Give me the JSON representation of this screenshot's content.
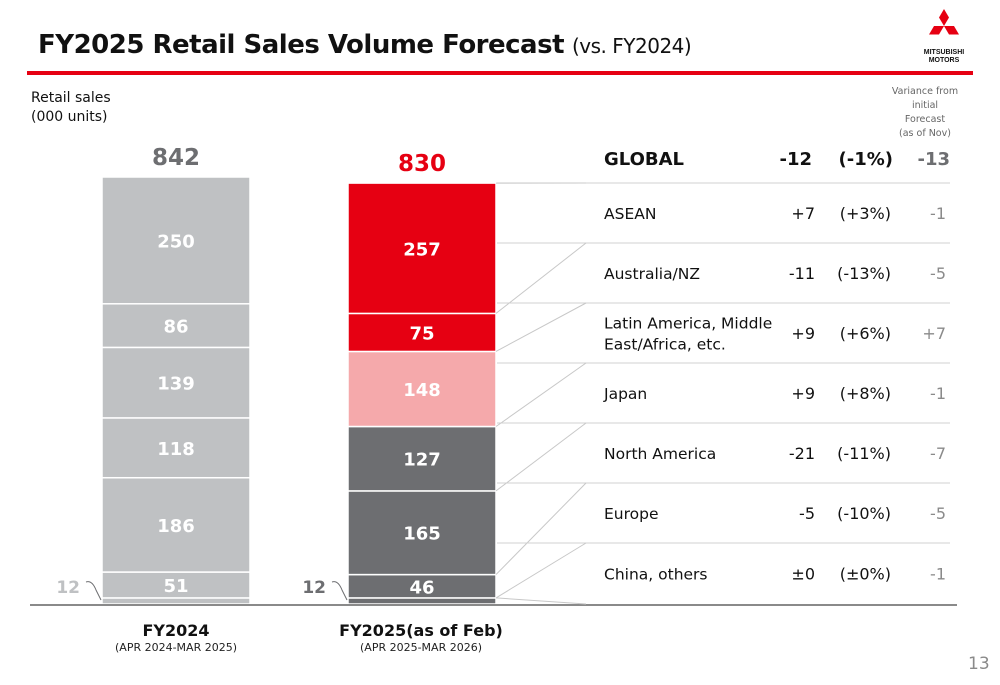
{
  "header": {
    "title": "FY2025 Retail Sales Volume Forecast",
    "subtitle": "(vs. FY2024)",
    "logo_text": [
      "MITSUBISHI",
      "MOTORS"
    ]
  },
  "page_number": "13",
  "colors": {
    "accent": "#e60012",
    "fy2024_bar": "#bfc1c3",
    "dark_grey": "#6d6e71",
    "light_red": "#f5a9ab",
    "neutral_text": "#8a8a8a"
  },
  "chart_data": {
    "type": "bar",
    "stacked": true,
    "ylabel": "Retail sales\n(000 units)",
    "variance_header": "Variance from\ninitial\nForecast\n(as of Nov)",
    "bars": [
      {
        "label": "FY2024",
        "sublabel": "(APR 2024-MAR 2025)",
        "total": 842,
        "total_label": "842",
        "segments": [
          {
            "value": 12,
            "label": "12"
          },
          {
            "value": 51,
            "label": "51"
          },
          {
            "value": 186,
            "label": "186"
          },
          {
            "value": 118,
            "label": "118"
          },
          {
            "value": 139,
            "label": "139"
          },
          {
            "value": 86,
            "label": "86"
          },
          {
            "value": 250,
            "label": "250"
          }
        ]
      },
      {
        "label": "FY2025",
        "label_suffix": "(as of Feb)",
        "sublabel": "(APR 2025-MAR 2026)",
        "total": 830,
        "total_label": "830",
        "segments": [
          {
            "value": 12,
            "label": "12"
          },
          {
            "value": 46,
            "label": "46"
          },
          {
            "value": 165,
            "label": "165"
          },
          {
            "value": 127,
            "label": "127"
          },
          {
            "value": 148,
            "label": "148"
          },
          {
            "value": 75,
            "label": "75"
          },
          {
            "value": 257,
            "label": "257"
          }
        ]
      }
    ],
    "table": {
      "global": {
        "region": "GLOBAL",
        "change": "-12",
        "pct": "(-1%)",
        "variance": "-13"
      },
      "rows": [
        {
          "region": "ASEAN",
          "change": "+7",
          "pct": "(+3%)",
          "variance": "-1"
        },
        {
          "region": "Australia/NZ",
          "change": "-11",
          "pct": "(-13%)",
          "variance": "-5"
        },
        {
          "region": "Latin America, Middle\nEast/Africa, etc.",
          "change": "+9",
          "pct": "(+6%)",
          "variance": "+7"
        },
        {
          "region": "Japan",
          "change": "+9",
          "pct": "(+8%)",
          "variance": "-1"
        },
        {
          "region": "North America",
          "change": "-21",
          "pct": "(-11%)",
          "variance": "-7"
        },
        {
          "region": "Europe",
          "change": "-5",
          "pct": "(-10%)",
          "variance": "-5"
        },
        {
          "region": "China, others",
          "change": "±0",
          "pct": "(±0%)",
          "variance": "-1"
        }
      ]
    }
  }
}
